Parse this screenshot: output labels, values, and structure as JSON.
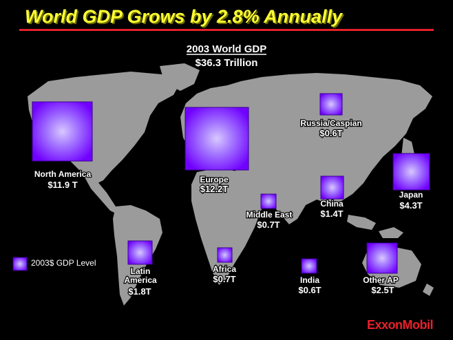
{
  "header": {
    "title": "World GDP Grows by 2.8% Annually"
  },
  "chart_data": {
    "type": "proportional-symbol-map",
    "title": "2003 World GDP",
    "subtitle": "$36.3 Trillion",
    "legend": {
      "label": "2003$ GDP Level",
      "placement": "bottom-left"
    },
    "series": [
      {
        "region": "North America",
        "value_label": "$11.9 T",
        "value": 11.9
      },
      {
        "region": "Europe",
        "value_label": "$12.2T",
        "value": 12.2
      },
      {
        "region": "Russia/Caspian",
        "value_label": "$0.6T",
        "value": 0.6
      },
      {
        "region": "Japan",
        "value_label": "$4.3T",
        "value": 4.3
      },
      {
        "region": "China",
        "value_label": "$1.4T",
        "value": 1.4
      },
      {
        "region": "Middle East",
        "value_label": "$0.7T",
        "value": 0.7
      },
      {
        "region": "Latin America",
        "value_label": "$1.8T",
        "value": 1.8
      },
      {
        "region": "Africa",
        "value_label": "$0.7T",
        "value": 0.7
      },
      {
        "region": "India",
        "value_label": "$0.6T",
        "value": 0.6
      },
      {
        "region": "Other AP",
        "value_label": "$2.5T",
        "value": 2.5
      }
    ],
    "colors": {
      "square_dark": "#7a00ff",
      "square_light": "#c8b0ff",
      "land": "#9b9b9b",
      "background": "#000000"
    }
  },
  "logo": {
    "text": "ExxonMobil",
    "color": "#e8202a"
  }
}
